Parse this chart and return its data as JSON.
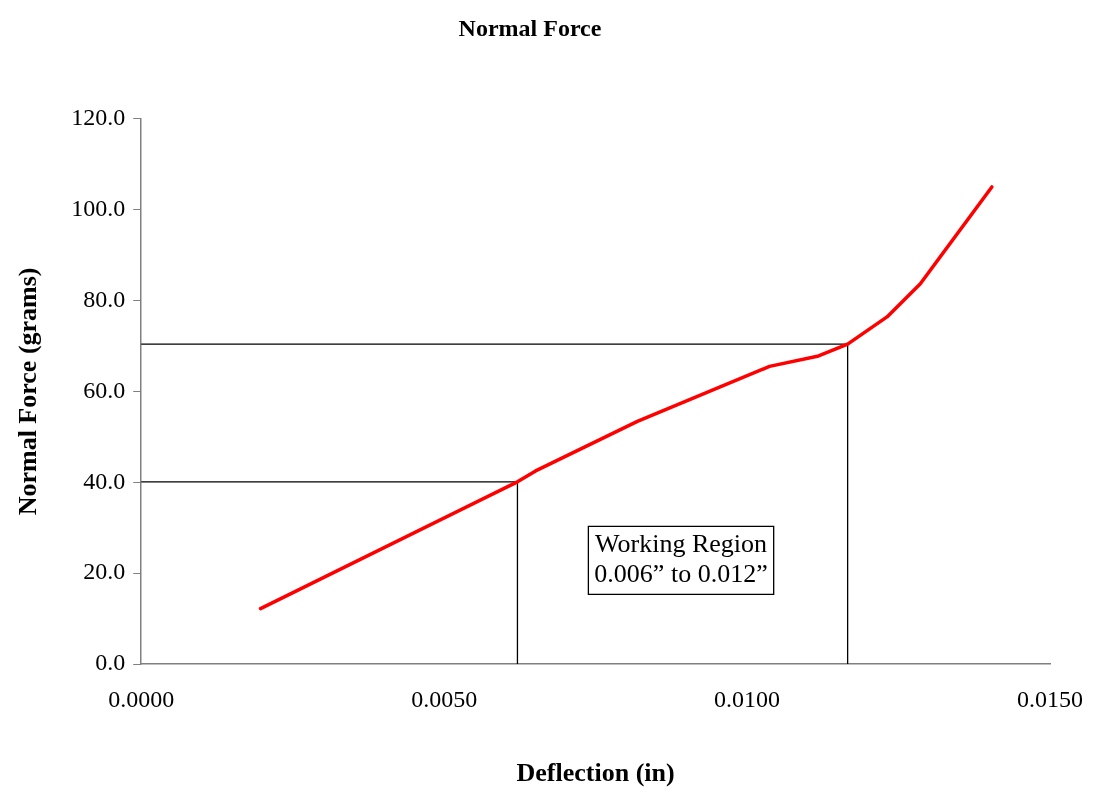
{
  "chart_data": {
    "type": "line",
    "title": "Normal Force",
    "xlabel": "Deflection (in)",
    "ylabel": "Normal Force (grams)",
    "xlim": [
      0,
      0.015
    ],
    "xticks": [
      {
        "value": 0,
        "label": "0.0000"
      },
      {
        "value": 0.005,
        "label": "0.0050"
      },
      {
        "value": 0.01,
        "label": "0.0100"
      },
      {
        "value": 0.015,
        "label": "0.0150"
      }
    ],
    "ylim": [
      0,
      120
    ],
    "yticks": [
      {
        "value": 0,
        "label": "0.0"
      },
      {
        "value": 20,
        "label": "20.0"
      },
      {
        "value": 40,
        "label": "40.0"
      },
      {
        "value": 60,
        "label": "60.0"
      },
      {
        "value": 80,
        "label": "80.0"
      },
      {
        "value": 100,
        "label": "100.0"
      },
      {
        "value": 120,
        "label": "120.0"
      }
    ],
    "grid": false,
    "legend": false,
    "marker": "none",
    "line_style": "solid",
    "series": [
      {
        "color": "#ff0000",
        "x": [
          0.00197,
          0.00621,
          0.00651,
          0.00819,
          0.01037,
          0.01118,
          0.01166,
          0.01231,
          0.01286,
          0.01404
        ],
        "values": [
          12.2,
          40.1,
          42.5,
          53.4,
          65.5,
          67.8,
          70.4,
          76.4,
          83.7,
          105.0
        ]
      },
      {
        "color": "#000000",
        "x": [
          0,
          0.00621,
          0.00621
        ],
        "values": [
          40.1,
          40.1,
          0
        ]
      },
      {
        "color": "#000000",
        "x": [
          0,
          0.01166,
          0.01166
        ],
        "values": [
          70.4,
          70.4,
          0
        ]
      }
    ],
    "annotations": [
      "Working Region\n0.006” to 0.012”"
    ]
  }
}
